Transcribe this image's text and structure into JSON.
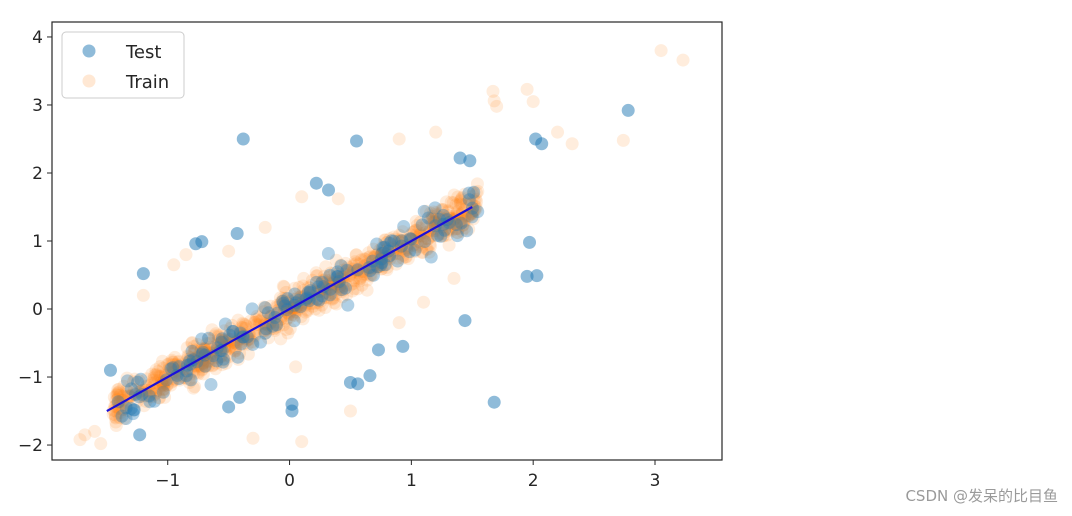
{
  "chart_data": {
    "type": "scatter",
    "title": "",
    "xlabel": "",
    "ylabel": "",
    "xlim": [
      -1.95,
      3.55
    ],
    "ylim": [
      -2.22,
      4.22
    ],
    "x_ticks": [
      -1,
      0,
      1,
      2,
      3
    ],
    "x_tick_labels": [
      "−1",
      "0",
      "1",
      "2",
      "3"
    ],
    "y_ticks": [
      -2,
      -1,
      0,
      1,
      2,
      3,
      4
    ],
    "y_tick_labels": [
      "−2",
      "−1",
      "0",
      "1",
      "2",
      "3",
      "4"
    ],
    "grid": false,
    "legend_position": "top-left",
    "series": [
      {
        "name": "Test",
        "kind": "scatter",
        "color": "#1f77b4",
        "opacity": 0.5,
        "points": [
          [
            -0.38,
            2.5
          ],
          [
            0.55,
            2.47
          ],
          [
            2.78,
            2.92
          ],
          [
            1.68,
            -1.37
          ],
          [
            2.02,
            2.5
          ],
          [
            2.07,
            2.43
          ],
          [
            -1.2,
            0.52
          ],
          [
            -0.77,
            0.96
          ],
          [
            -0.72,
            0.99
          ],
          [
            -0.43,
            1.11
          ],
          [
            0.22,
            1.85
          ],
          [
            0.32,
            1.75
          ],
          [
            1.4,
            2.22
          ],
          [
            1.48,
            2.18
          ],
          [
            1.97,
            0.98
          ],
          [
            2.03,
            0.49
          ],
          [
            1.95,
            0.48
          ],
          [
            1.44,
            -0.17
          ],
          [
            0.5,
            -1.08
          ],
          [
            0.56,
            -1.1
          ],
          [
            0.66,
            -0.98
          ],
          [
            0.02,
            -1.4
          ],
          [
            0.02,
            -1.5
          ],
          [
            -1.23,
            -1.85
          ],
          [
            -1.47,
            -0.9
          ],
          [
            -0.41,
            -1.3
          ],
          [
            -0.5,
            -1.44
          ],
          [
            0.73,
            -0.6
          ],
          [
            0.93,
            -0.55
          ]
        ]
      },
      {
        "name": "Train",
        "kind": "scatter",
        "color": "#ff7f0e",
        "opacity": 0.14,
        "points": [
          [
            3.05,
            3.8
          ],
          [
            3.23,
            3.66
          ],
          [
            2.74,
            2.48
          ],
          [
            1.67,
            3.2
          ],
          [
            1.68,
            3.06
          ],
          [
            1.7,
            2.98
          ],
          [
            1.95,
            3.23
          ],
          [
            2.0,
            3.05
          ],
          [
            2.2,
            2.6
          ],
          [
            2.32,
            2.43
          ],
          [
            -1.68,
            -1.85
          ],
          [
            -1.72,
            -1.92
          ],
          [
            -1.55,
            -1.98
          ],
          [
            -1.6,
            -1.8
          ],
          [
            -1.2,
            0.2
          ],
          [
            -0.95,
            0.65
          ],
          [
            -0.85,
            0.8
          ],
          [
            0.1,
            1.65
          ],
          [
            0.4,
            1.62
          ],
          [
            1.2,
            2.6
          ],
          [
            0.9,
            2.5
          ],
          [
            -0.3,
            -1.9
          ],
          [
            0.1,
            -1.95
          ],
          [
            0.5,
            -1.5
          ],
          [
            0.9,
            -0.2
          ],
          [
            1.1,
            0.1
          ],
          [
            1.35,
            0.45
          ],
          [
            0.05,
            -0.85
          ],
          [
            -0.5,
            0.85
          ],
          [
            -0.2,
            1.2
          ]
        ]
      },
      {
        "name": "",
        "kind": "line",
        "color": "#1a0fd9",
        "x": [
          -1.5,
          1.5
        ],
        "y": [
          -1.5,
          1.5
        ]
      }
    ]
  },
  "legend": {
    "items": [
      {
        "label": "Test",
        "color": "#1f77b4",
        "opacity": 0.5
      },
      {
        "label": "Train",
        "color": "#ff7f0e",
        "opacity": 0.14
      }
    ]
  },
  "watermark": "CSDN @发呆的比目鱼"
}
